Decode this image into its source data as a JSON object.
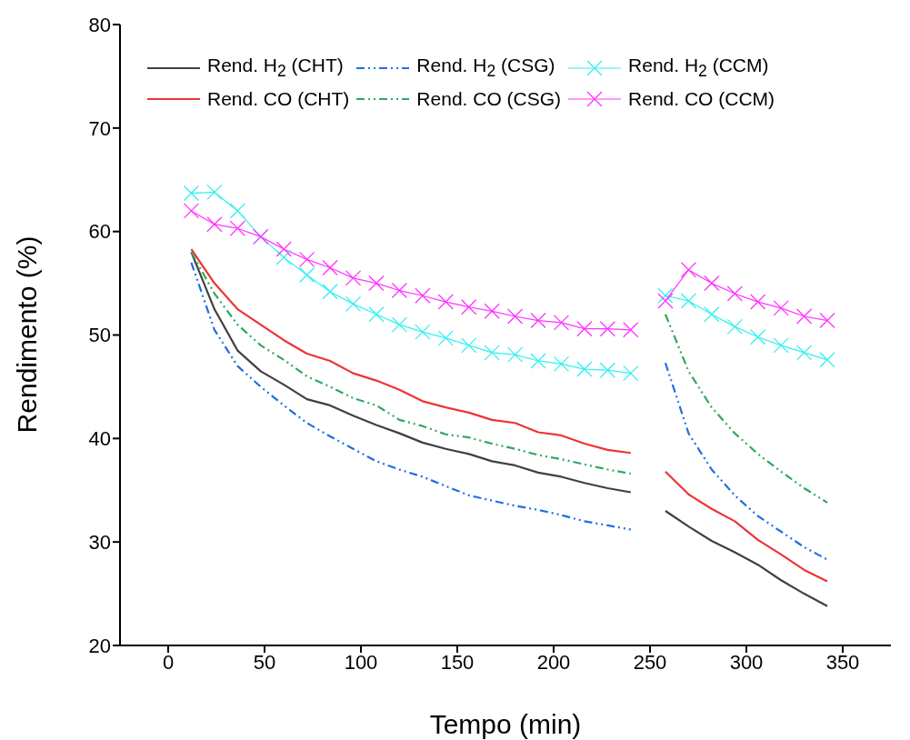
{
  "chart_data": {
    "type": "line",
    "xlabel": "Tempo (min)",
    "ylabel": "Rendimento (%)",
    "x": [
      12,
      24,
      36,
      48,
      60,
      72,
      84,
      96,
      108,
      120,
      132,
      144,
      156,
      168,
      180,
      192,
      204,
      216,
      228,
      240,
      249,
      258,
      270,
      282,
      294,
      306,
      318,
      330,
      342
    ],
    "xlim": [
      -25,
      375
    ],
    "xticks": [
      0,
      50,
      100,
      150,
      200,
      250,
      300,
      350
    ],
    "ylim": [
      20,
      80
    ],
    "yticks": [
      20,
      30,
      40,
      50,
      60,
      70,
      80
    ],
    "grid": false,
    "legend": "top",
    "line_style": "solid",
    "marker": "none",
    "series": [
      {
        "name": "Rend. H$_{2}$ (CHT)",
        "color": "#404040",
        "values": [
          58,
          52.5,
          48.5,
          46.5,
          45.2,
          43.8,
          43.2,
          42.2,
          41.3,
          40.5,
          39.6,
          39,
          38.5,
          37.8,
          37.4,
          36.7,
          36.3,
          35.7,
          35.2,
          34.8,
          null,
          33,
          31.5,
          30.1,
          29,
          27.8,
          26.3,
          25,
          23.8
        ]
      },
      {
        "name": "Rend. H$_{2}$ (CSG)",
        "color": "#1f6fe0",
        "line_style": "dashed",
        "values": [
          57,
          50.5,
          47,
          45,
          43.2,
          41.5,
          40.2,
          39,
          37.8,
          37,
          36.3,
          35.4,
          34.5,
          34,
          33.5,
          33.1,
          32.6,
          32,
          31.6,
          31.2,
          null,
          47.3,
          40.5,
          37,
          34.5,
          32.5,
          31,
          29.5,
          28.3
        ]
      },
      {
        "name": "Rend. H$_{2}$ (CCM)",
        "color": "#33f0f0",
        "marker": "cross",
        "values": [
          63.7,
          63.8,
          62,
          59.5,
          57.5,
          55.8,
          54.2,
          53,
          52,
          51,
          50.3,
          49.7,
          49,
          48.3,
          48.1,
          47.5,
          47.2,
          46.7,
          46.6,
          46.3,
          null,
          53.8,
          53.3,
          52,
          50.8,
          49.8,
          49,
          48.3,
          47.6
        ]
      },
      {
        "name": "Rend. CO (CHT)",
        "color": "#ee3333",
        "values": [
          58.3,
          55,
          52.5,
          51,
          49.5,
          48.2,
          47.5,
          46.3,
          45.6,
          44.7,
          43.6,
          43,
          42.5,
          41.8,
          41.5,
          40.6,
          40.3,
          39.5,
          38.9,
          38.6,
          null,
          36.8,
          34.6,
          33.2,
          32,
          30.2,
          28.8,
          27.3,
          26.2
        ]
      },
      {
        "name": "Rend. CO (CSG)",
        "color": "#2ea860",
        "line_style": "dashed",
        "values": [
          58,
          54,
          51,
          49,
          47.6,
          46,
          45,
          43.9,
          43.2,
          41.8,
          41.2,
          40.4,
          40.1,
          39.5,
          39,
          38.4,
          38,
          37.5,
          37,
          36.6,
          null,
          52,
          46.5,
          43,
          40.5,
          38.5,
          36.8,
          35.2,
          33.8
        ]
      },
      {
        "name": "Rend. CO (CCM)",
        "color": "#ff33ff",
        "marker": "cross",
        "values": [
          62,
          60.7,
          60.3,
          59.5,
          58.3,
          57.3,
          56.5,
          55.5,
          55,
          54.3,
          53.8,
          53.2,
          52.7,
          52.3,
          51.8,
          51.4,
          51.2,
          50.6,
          50.6,
          50.5,
          null,
          53.3,
          56.3,
          55,
          54,
          53.2,
          52.6,
          51.8,
          51.4
        ]
      }
    ]
  }
}
